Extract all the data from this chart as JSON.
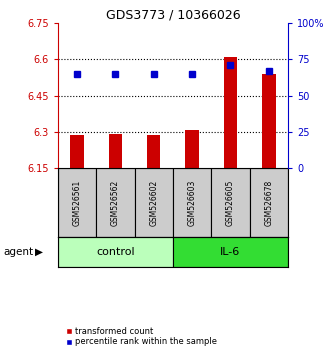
{
  "title": "GDS3773 / 10366026",
  "samples": [
    "GSM526561",
    "GSM526562",
    "GSM526602",
    "GSM526603",
    "GSM526605",
    "GSM526678"
  ],
  "groups": [
    "control",
    "control",
    "control",
    "IL-6",
    "IL-6",
    "IL-6"
  ],
  "red_values": [
    6.285,
    6.292,
    6.285,
    6.308,
    6.608,
    6.538
  ],
  "blue_values_pct": [
    65,
    65,
    65,
    65,
    71,
    67
  ],
  "ylim_left": [
    6.15,
    6.75
  ],
  "ylim_right": [
    0,
    100
  ],
  "yticks_left": [
    6.15,
    6.3,
    6.45,
    6.6,
    6.75
  ],
  "yticks_right": [
    0,
    25,
    50,
    75,
    100
  ],
  "ytick_labels_right": [
    "0",
    "25",
    "50",
    "75",
    "100%"
  ],
  "red_color": "#cc0000",
  "blue_color": "#0000cc",
  "control_bg": "#bbffbb",
  "il6_bg": "#33dd33",
  "sample_bg": "#cccccc",
  "agent_label": "agent",
  "legend_red": "transformed count",
  "legend_blue": "percentile rank within the sample",
  "group_label_control": "control",
  "group_label_il6": "IL-6"
}
